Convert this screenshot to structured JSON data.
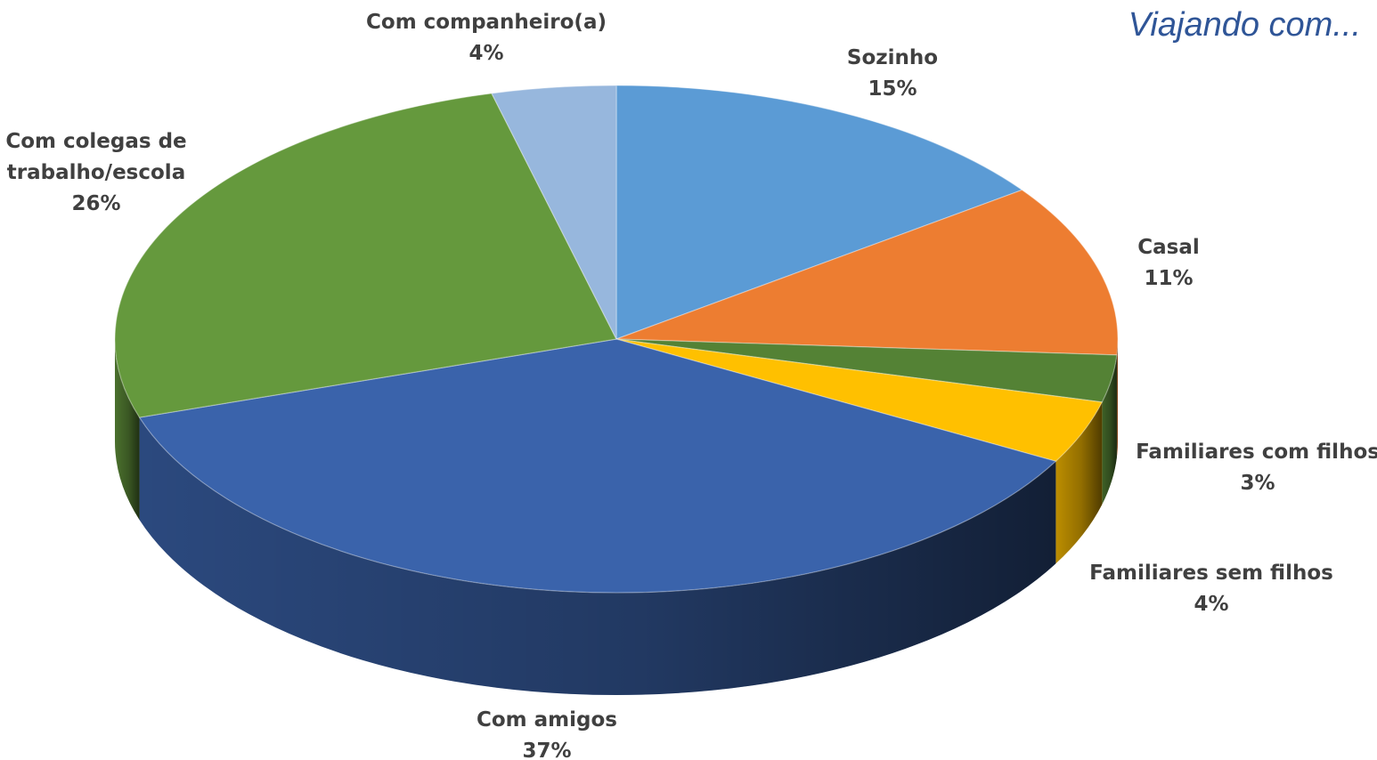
{
  "chart_data": {
    "type": "pie",
    "title": "Viajando com...",
    "slices": [
      {
        "label_lines": [
          "Sozinho"
        ],
        "value_label": "15%",
        "value": 15,
        "color": "#5b9bd5"
      },
      {
        "label_lines": [
          "Casal"
        ],
        "value_label": "11%",
        "value": 11,
        "color": "#ed7d31"
      },
      {
        "label_lines": [
          "Familiares com filhos"
        ],
        "value_label": "3%",
        "value": 3,
        "color": "#548235"
      },
      {
        "label_lines": [
          "Familiares sem filhos"
        ],
        "value_label": "4%",
        "value": 4,
        "color": "#ffc000"
      },
      {
        "label_lines": [
          "Com amigos"
        ],
        "value_label": "37%",
        "value": 37,
        "color": "#3a63ab"
      },
      {
        "label_lines": [
          "Com colegas de",
          "trabalho/escola"
        ],
        "value_label": "26%",
        "value": 26,
        "color": "#65993d"
      },
      {
        "label_lines": [
          "Com companheiro(a)"
        ],
        "value_label": "4%",
        "value": 4,
        "color": "#97b7dd"
      }
    ]
  }
}
